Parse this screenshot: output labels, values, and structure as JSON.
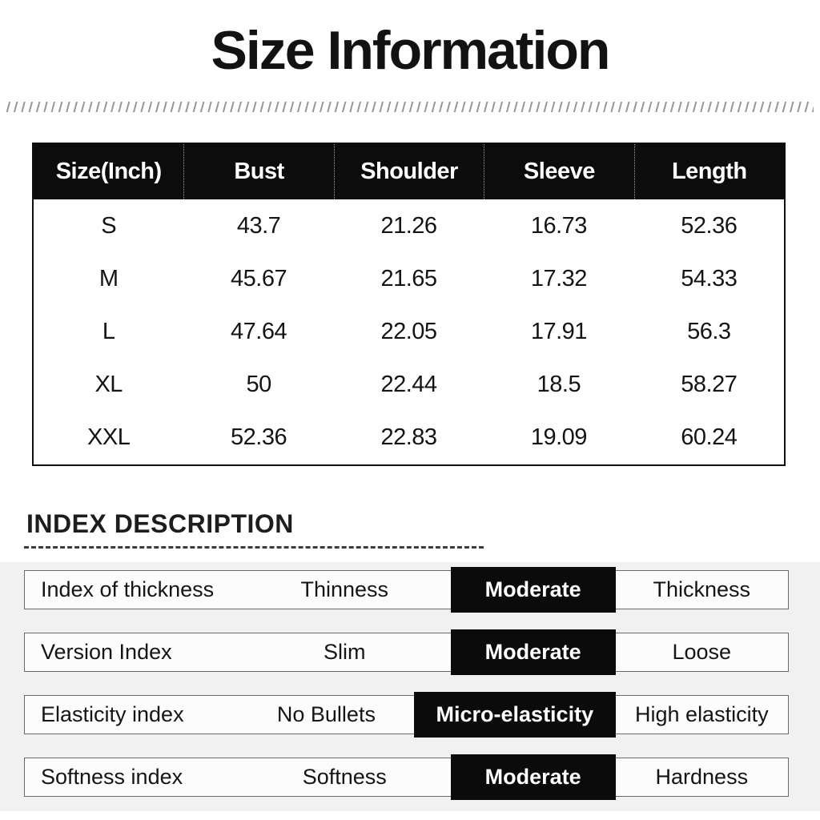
{
  "title": "Size Information",
  "size_table": {
    "headers": [
      "Size(Inch)",
      "Bust",
      "Shoulder",
      "Sleeve",
      "Length"
    ],
    "rows": [
      [
        "S",
        "43.7",
        "21.26",
        "16.73",
        "52.36"
      ],
      [
        "M",
        "45.67",
        "21.65",
        "17.32",
        "54.33"
      ],
      [
        "L",
        "47.64",
        "22.05",
        "17.91",
        "56.3"
      ],
      [
        "XL",
        "50",
        "22.44",
        "18.5",
        "58.27"
      ],
      [
        "XXL",
        "52.36",
        "22.83",
        "19.09",
        "60.24"
      ]
    ]
  },
  "index_section": {
    "heading": "INDEX DESCRIPTION",
    "rows": [
      {
        "label": "Index of thickness",
        "left": "Thinness",
        "highlighted": "Moderate",
        "right": "Thickness"
      },
      {
        "label": "Version Index",
        "left": "Slim",
        "highlighted": "Moderate",
        "right": "Loose"
      },
      {
        "label": "Elasticity index",
        "left": "No Bullets",
        "highlighted": "Micro-elasticity",
        "right": "High elasticity"
      },
      {
        "label": "Softness index",
        "left": "Softness",
        "highlighted": "Moderate",
        "right": "Hardness"
      }
    ]
  },
  "colors": {
    "header_bg": "#0c0c0c",
    "header_text": "#ffffff",
    "highlight_bg": "#0b0b0b",
    "highlight_text": "#ffffff",
    "panel_bg": "#f1f1f2",
    "body_text": "#111111"
  },
  "chart_data": [
    {
      "type": "table",
      "title": "Size Information",
      "columns": [
        "Size(Inch)",
        "Bust",
        "Shoulder",
        "Sleeve",
        "Length"
      ],
      "rows": [
        [
          "S",
          43.7,
          21.26,
          16.73,
          52.36
        ],
        [
          "M",
          45.67,
          21.65,
          17.32,
          54.33
        ],
        [
          "L",
          47.64,
          22.05,
          17.91,
          56.3
        ],
        [
          "XL",
          50,
          22.44,
          18.5,
          58.27
        ],
        [
          "XXL",
          52.36,
          22.83,
          19.09,
          60.24
        ]
      ],
      "units": "inches"
    },
    {
      "type": "table",
      "title": "INDEX DESCRIPTION",
      "columns": [
        "index",
        "option_left",
        "option_selected",
        "option_right"
      ],
      "rows": [
        [
          "Index of thickness",
          "Thinness",
          "Moderate",
          "Thickness"
        ],
        [
          "Version Index",
          "Slim",
          "Moderate",
          "Loose"
        ],
        [
          "Elasticity index",
          "No Bullets",
          "Micro-elasticity",
          "High elasticity"
        ],
        [
          "Softness index",
          "Softness",
          "Moderate",
          "Hardness"
        ]
      ],
      "notes": "selected option rendered as white text on black cell"
    }
  ]
}
